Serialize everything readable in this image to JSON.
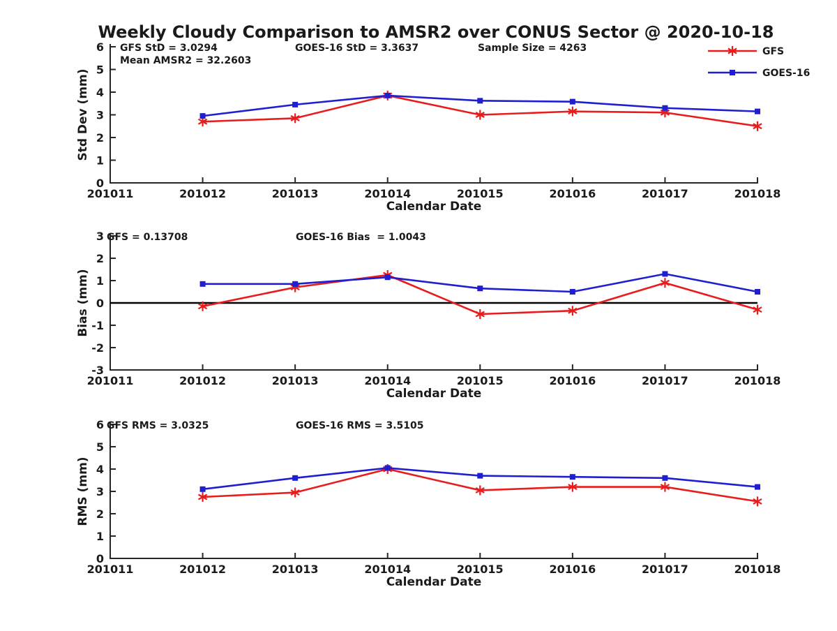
{
  "title": "Weekly Cloudy Comparison to AMSR2 over CONUS Sector @ 2020-10-18",
  "colors": {
    "gfs": "#e81c1c",
    "goes16": "#1f1fd0",
    "axis": "#262626",
    "zero_line": "#000000"
  },
  "legend": {
    "entries": [
      {
        "label": "GFS",
        "marker": "asterisk",
        "color_key": "gfs"
      },
      {
        "label": "GOES-16",
        "marker": "square",
        "color_key": "goes16"
      }
    ]
  },
  "chart_data": [
    {
      "type": "line",
      "name": "std-dev",
      "ylabel": "Std Dev (mm)",
      "xlabel": "Calendar Date",
      "ylim": [
        0,
        6
      ],
      "yticks": [
        0,
        1,
        2,
        3,
        4,
        5,
        6
      ],
      "categories": [
        "201011",
        "201012",
        "201013",
        "201014",
        "201015",
        "201016",
        "201017",
        "201018"
      ],
      "annotations": [
        "GFS StD = 3.0294",
        "Mean AMSR2 = 32.2603",
        "GOES-16 StD = 3.3637",
        "Sample Size = 4263"
      ],
      "zero_line": false,
      "series": [
        {
          "name": "GFS",
          "marker": "asterisk",
          "color_key": "gfs",
          "x": [
            "201012",
            "201013",
            "201014",
            "201015",
            "201016",
            "201017",
            "201018"
          ],
          "values": [
            2.7,
            2.85,
            3.85,
            3.0,
            3.15,
            3.1,
            2.5
          ]
        },
        {
          "name": "GOES-16",
          "marker": "square",
          "color_key": "goes16",
          "x": [
            "201012",
            "201013",
            "201014",
            "201015",
            "201016",
            "201017",
            "201018"
          ],
          "values": [
            2.95,
            3.45,
            3.85,
            3.62,
            3.58,
            3.3,
            3.15
          ]
        }
      ]
    },
    {
      "type": "line",
      "name": "bias",
      "ylabel": "Bias (mm)",
      "xlabel": "Calendar Date",
      "ylim": [
        -3,
        3
      ],
      "yticks": [
        -3,
        -2,
        -1,
        0,
        1,
        2,
        3
      ],
      "categories": [
        "201011",
        "201012",
        "201013",
        "201014",
        "201015",
        "201016",
        "201017",
        "201018"
      ],
      "annotations": [
        "GFS = 0.13708",
        "GOES-16 Bias  = 1.0043"
      ],
      "zero_line": true,
      "series": [
        {
          "name": "GFS",
          "marker": "asterisk",
          "color_key": "gfs",
          "x": [
            "201012",
            "201013",
            "201014",
            "201015",
            "201016",
            "201017",
            "201018"
          ],
          "values": [
            -0.15,
            0.7,
            1.25,
            -0.5,
            -0.35,
            0.9,
            -0.3
          ]
        },
        {
          "name": "GOES-16",
          "marker": "square",
          "color_key": "goes16",
          "x": [
            "201012",
            "201013",
            "201014",
            "201015",
            "201016",
            "201017",
            "201018"
          ],
          "values": [
            0.85,
            0.85,
            1.15,
            0.65,
            0.5,
            1.3,
            0.5
          ]
        }
      ]
    },
    {
      "type": "line",
      "name": "rms",
      "ylabel": "RMS (mm)",
      "xlabel": "Calendar Date",
      "ylim": [
        0,
        6
      ],
      "yticks": [
        0,
        1,
        2,
        3,
        4,
        5,
        6
      ],
      "categories": [
        "201011",
        "201012",
        "201013",
        "201014",
        "201015",
        "201016",
        "201017",
        "201018"
      ],
      "annotations": [
        "GFS RMS = 3.0325",
        "GOES-16 RMS = 3.5105"
      ],
      "zero_line": false,
      "series": [
        {
          "name": "GFS",
          "marker": "asterisk",
          "color_key": "gfs",
          "x": [
            "201012",
            "201013",
            "201014",
            "201015",
            "201016",
            "201017",
            "201018"
          ],
          "values": [
            2.75,
            2.95,
            4.0,
            3.05,
            3.2,
            3.2,
            2.55
          ]
        },
        {
          "name": "GOES-16",
          "marker": "square",
          "color_key": "goes16",
          "x": [
            "201012",
            "201013",
            "201014",
            "201015",
            "201016",
            "201017",
            "201018"
          ],
          "values": [
            3.1,
            3.6,
            4.05,
            3.7,
            3.65,
            3.6,
            3.2
          ]
        }
      ]
    }
  ]
}
